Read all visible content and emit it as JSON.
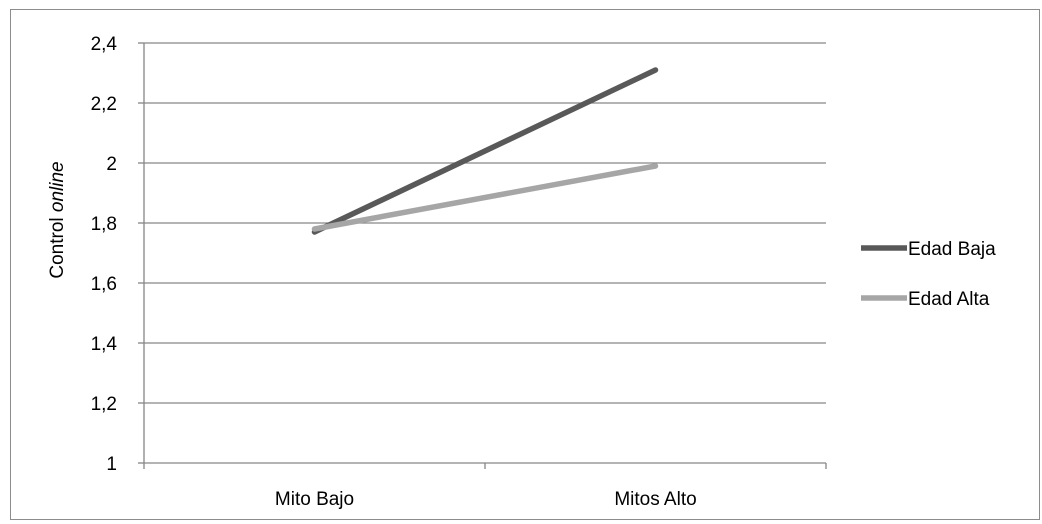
{
  "chart_data": {
    "type": "line",
    "title": "",
    "xlabel": "",
    "ylabel": "Control",
    "ylabel_italic": "online",
    "categories": [
      "Mito Bajo",
      "Mitos Alto"
    ],
    "ylim": [
      1,
      2.4
    ],
    "yticks": [
      1,
      1.2,
      1.4,
      1.6,
      1.8,
      2,
      2.2,
      2.4
    ],
    "ytick_labels": [
      "1",
      "1,2",
      "1,4",
      "1,6",
      "1,8",
      "2",
      "2,2",
      "2,4"
    ],
    "grid": true,
    "legend_position": "right",
    "series": [
      {
        "name": "Edad Baja",
        "values": [
          1.77,
          2.31
        ],
        "color": "#595959"
      },
      {
        "name": "Edad Alta",
        "values": [
          1.78,
          1.99
        ],
        "color": "#a6a6a6"
      }
    ]
  }
}
